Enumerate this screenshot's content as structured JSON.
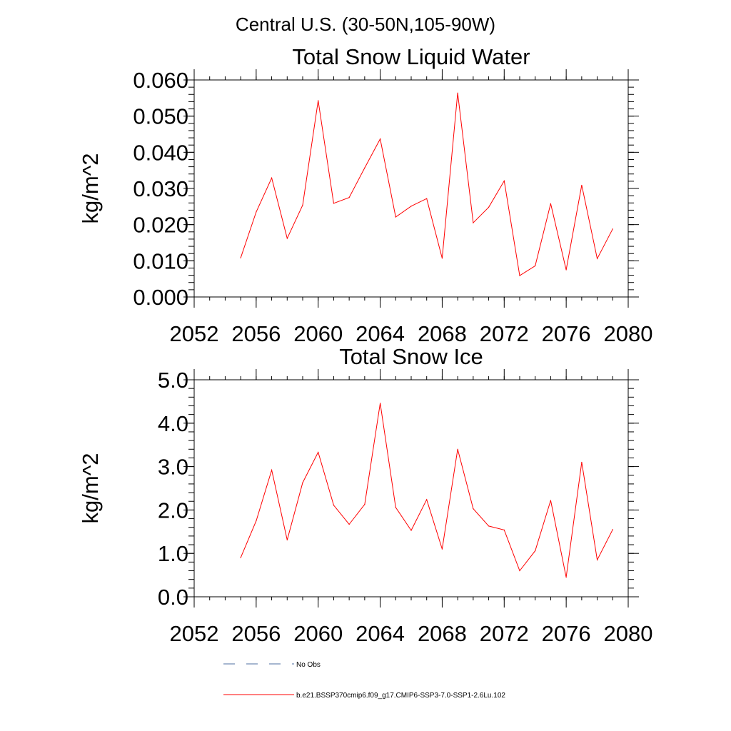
{
  "figure": {
    "suptitle": "Central U.S. (30-50N,105-90W)"
  },
  "colors": {
    "model": "#ff0000",
    "obs": "#4c6fa0",
    "axes": "#000000"
  },
  "legend": {
    "entries": [
      {
        "label": "No Obs",
        "style": "dashed",
        "color": "#4c6fa0"
      },
      {
        "label": "b.e21.BSSP370cmip6.f09_g17.CMIP6-SSP3-7.0-SSP1-2.6Lu.102",
        "style": "solid",
        "color": "#ff0000"
      }
    ]
  },
  "chart_data": [
    {
      "type": "line",
      "title": "Total Snow Liquid Water",
      "xlabel": "",
      "ylabel": "kg/m^2",
      "xlim": [
        2052,
        2080
      ],
      "ylim": [
        0,
        0.06
      ],
      "xticks": [
        2052,
        2056,
        2060,
        2064,
        2068,
        2072,
        2076,
        2080
      ],
      "xtick_labels": [
        "2052",
        "2056",
        "2060",
        "2064",
        "2068",
        "2072",
        "2076",
        "2080"
      ],
      "yticks": [
        0,
        0.01,
        0.02,
        0.03,
        0.04,
        0.05,
        0.06
      ],
      "ytick_labels": [
        "0.000",
        "0.010",
        "0.020",
        "0.030",
        "0.040",
        "0.050",
        "0.060"
      ],
      "grid": false,
      "legend_placement": "bottom",
      "series": [
        {
          "name": "b.e21.BSSP370cmip6.f09_g17.CMIP6-SSP3-7.0-SSP1-2.6Lu.102",
          "x": [
            2055,
            2056,
            2057,
            2058,
            2059,
            2060,
            2061,
            2062,
            2063,
            2064,
            2065,
            2066,
            2067,
            2068,
            2069,
            2070,
            2071,
            2072,
            2073,
            2074,
            2075,
            2076,
            2077,
            2078,
            2079
          ],
          "values": [
            0.0108,
            0.0235,
            0.0329,
            0.0162,
            0.0254,
            0.0543,
            0.0259,
            0.0275,
            0.0357,
            0.0437,
            0.0221,
            0.0251,
            0.0272,
            0.0107,
            0.0564,
            0.0205,
            0.0248,
            0.0321,
            0.0059,
            0.0086,
            0.0258,
            0.0075,
            0.0309,
            0.0106,
            0.0188
          ]
        }
      ]
    },
    {
      "type": "line",
      "title": "Total Snow Ice",
      "xlabel": "",
      "ylabel": "kg/m^2",
      "xlim": [
        2052,
        2080
      ],
      "ylim": [
        0,
        5
      ],
      "xticks": [
        2052,
        2056,
        2060,
        2064,
        2068,
        2072,
        2076,
        2080
      ],
      "xtick_labels": [
        "2052",
        "2056",
        "2060",
        "2064",
        "2068",
        "2072",
        "2076",
        "2080"
      ],
      "yticks": [
        0,
        1,
        2,
        3,
        4,
        5
      ],
      "ytick_labels": [
        "0.0",
        "1.0",
        "2.0",
        "3.0",
        "4.0",
        "5.0"
      ],
      "grid": false,
      "legend_placement": "bottom",
      "series": [
        {
          "name": "b.e21.BSSP370cmip6.f09_g17.CMIP6-SSP3-7.0-SSP1-2.6Lu.102",
          "x": [
            2055,
            2056,
            2057,
            2058,
            2059,
            2060,
            2061,
            2062,
            2063,
            2064,
            2065,
            2066,
            2067,
            2068,
            2069,
            2070,
            2071,
            2072,
            2073,
            2074,
            2075,
            2076,
            2077,
            2078,
            2079
          ],
          "values": [
            0.9,
            1.75,
            2.92,
            1.31,
            2.63,
            3.33,
            2.11,
            1.67,
            2.13,
            4.46,
            2.06,
            1.53,
            2.24,
            1.1,
            3.4,
            2.03,
            1.63,
            1.54,
            0.6,
            1.06,
            2.22,
            0.45,
            3.1,
            0.85,
            1.55
          ]
        }
      ]
    }
  ]
}
